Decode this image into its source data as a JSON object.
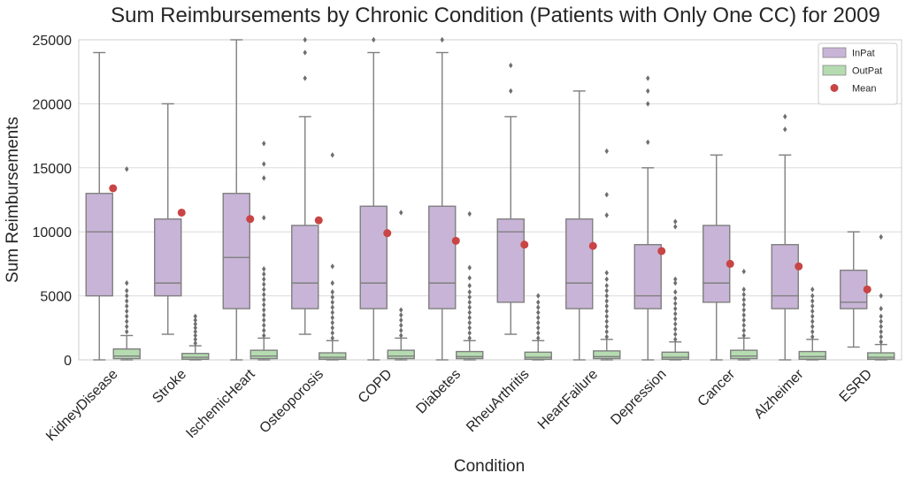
{
  "chart_data": {
    "type": "box",
    "title": "Sum Reimbursements by Chronic Condition (Patients with Only One CC) for 2009",
    "xlabel": "Condition",
    "ylabel": "Sum Reimbursements",
    "ylim": [
      0,
      25000
    ],
    "yticks": [
      0,
      5000,
      10000,
      15000,
      20000,
      25000
    ],
    "grid": "horizontal",
    "legend_position": "top-right",
    "categories": [
      "KidneyDisease",
      "Stroke",
      "IschemicHeart",
      "Osteoporosis",
      "COPD",
      "Diabetes",
      "RheuArthritis",
      "HeartFailure",
      "Depression",
      "Cancer",
      "Alzheimer",
      "ESRD"
    ],
    "series": [
      {
        "name": "InPat",
        "color": "#c8b4d7",
        "boxes": [
          {
            "min": 0,
            "q1": 5000,
            "median": 10000,
            "q3": 13000,
            "max": 24000,
            "outliers": []
          },
          {
            "min": 2000,
            "q1": 5000,
            "median": 6000,
            "q3": 11000,
            "max": 20000,
            "outliers": []
          },
          {
            "min": 0,
            "q1": 4000,
            "median": 8000,
            "q3": 13000,
            "max": 25000,
            "outliers": []
          },
          {
            "min": 2000,
            "q1": 4000,
            "median": 6000,
            "q3": 10500,
            "max": 19000,
            "outliers": [
              22000,
              24000,
              25000
            ]
          },
          {
            "min": 0,
            "q1": 4000,
            "median": 6000,
            "q3": 12000,
            "max": 24000,
            "outliers": [
              25000
            ]
          },
          {
            "min": 0,
            "q1": 4000,
            "median": 6000,
            "q3": 12000,
            "max": 24000,
            "outliers": [
              25000
            ]
          },
          {
            "min": 2000,
            "q1": 4500,
            "median": 10000,
            "q3": 11000,
            "max": 19000,
            "outliers": [
              21000,
              23000
            ]
          },
          {
            "min": 0,
            "q1": 4000,
            "median": 6000,
            "q3": 11000,
            "max": 21000,
            "outliers": []
          },
          {
            "min": 0,
            "q1": 4000,
            "median": 5000,
            "q3": 9000,
            "max": 15000,
            "outliers": [
              17000,
              20000,
              21000,
              22000
            ]
          },
          {
            "min": 0,
            "q1": 4500,
            "median": 6000,
            "q3": 10500,
            "max": 16000,
            "outliers": []
          },
          {
            "min": 0,
            "q1": 4000,
            "median": 5000,
            "q3": 9000,
            "max": 16000,
            "outliers": [
              18000,
              19000
            ]
          },
          {
            "min": 1000,
            "q1": 4000,
            "median": 4500,
            "q3": 7000,
            "max": 10000,
            "outliers": []
          }
        ]
      },
      {
        "name": "OutPat",
        "color": "#b5dcb0",
        "boxes": [
          {
            "min": 0,
            "q1": 100,
            "median": 300,
            "q3": 850,
            "max": 1900,
            "outliers": [
              2200,
              2600,
              3000,
              3400,
              3800,
              4200,
              4600,
              5000,
              5400,
              6000,
              14900
            ]
          },
          {
            "min": 0,
            "q1": 50,
            "median": 200,
            "q3": 500,
            "max": 1100,
            "outliers": [
              1300,
              1600,
              1900,
              2200,
              2500,
              2800,
              3100,
              3400
            ]
          },
          {
            "min": 0,
            "q1": 100,
            "median": 300,
            "q3": 750,
            "max": 1700,
            "outliers": [
              1900,
              2300,
              2700,
              3100,
              3500,
              3900,
              4300,
              4700,
              5100,
              5500,
              5900,
              6300,
              6700,
              7100,
              11100,
              14200,
              15300,
              16900
            ]
          },
          {
            "min": 0,
            "q1": 50,
            "median": 200,
            "q3": 550,
            "max": 1500,
            "outliers": [
              1700,
              2100,
              2500,
              2900,
              3300,
              3700,
              4100,
              4500,
              4900,
              5300,
              6000,
              7300,
              16000
            ]
          },
          {
            "min": 0,
            "q1": 100,
            "median": 300,
            "q3": 750,
            "max": 1700,
            "outliers": [
              1900,
              2300,
              2700,
              3100,
              3500,
              3900,
              11500
            ]
          },
          {
            "min": 0,
            "q1": 100,
            "median": 250,
            "q3": 650,
            "max": 1500,
            "outliers": [
              1700,
              2100,
              2500,
              2900,
              3300,
              3700,
              4100,
              4500,
              4900,
              5300,
              5800,
              6400,
              7200,
              11400
            ]
          },
          {
            "min": 0,
            "q1": 50,
            "median": 200,
            "q3": 600,
            "max": 1500,
            "outliers": [
              1700,
              2100,
              2500,
              2900,
              3300,
              3700,
              4100,
              4500,
              5000
            ]
          },
          {
            "min": 0,
            "q1": 100,
            "median": 250,
            "q3": 700,
            "max": 1600,
            "outliers": [
              1800,
              2200,
              2600,
              3000,
              3400,
              3800,
              4200,
              4600,
              5000,
              5400,
              5800,
              6300,
              6800,
              11300,
              12900,
              16300
            ]
          },
          {
            "min": 0,
            "q1": 50,
            "median": 200,
            "q3": 600,
            "max": 1400,
            "outliers": [
              1600,
              2000,
              2400,
              2800,
              3200,
              3600,
              4000,
              4400,
              4800,
              5300,
              6000,
              6300,
              10400,
              10800
            ]
          },
          {
            "min": 0,
            "q1": 100,
            "median": 300,
            "q3": 750,
            "max": 1700,
            "outliers": [
              1900,
              2300,
              2700,
              3100,
              3500,
              3900,
              4300,
              4700,
              5100,
              5500,
              6900
            ]
          },
          {
            "min": 0,
            "q1": 50,
            "median": 250,
            "q3": 650,
            "max": 1600,
            "outliers": [
              1800,
              2200,
              2600,
              3000,
              3400,
              3800,
              4200,
              4600,
              5000,
              5500
            ]
          },
          {
            "min": 0,
            "q1": 50,
            "median": 200,
            "q3": 550,
            "max": 1200,
            "outliers": [
              1400,
              1800,
              2200,
              2600,
              3000,
              3400,
              4000,
              5000,
              9600
            ]
          }
        ]
      },
      {
        "name": "Mean",
        "color": "#c94444",
        "marker": "circle",
        "values": [
          13400,
          11500,
          11000,
          10900,
          9900,
          9300,
          9000,
          8900,
          8500,
          7500,
          7300,
          5500
        ]
      }
    ]
  }
}
